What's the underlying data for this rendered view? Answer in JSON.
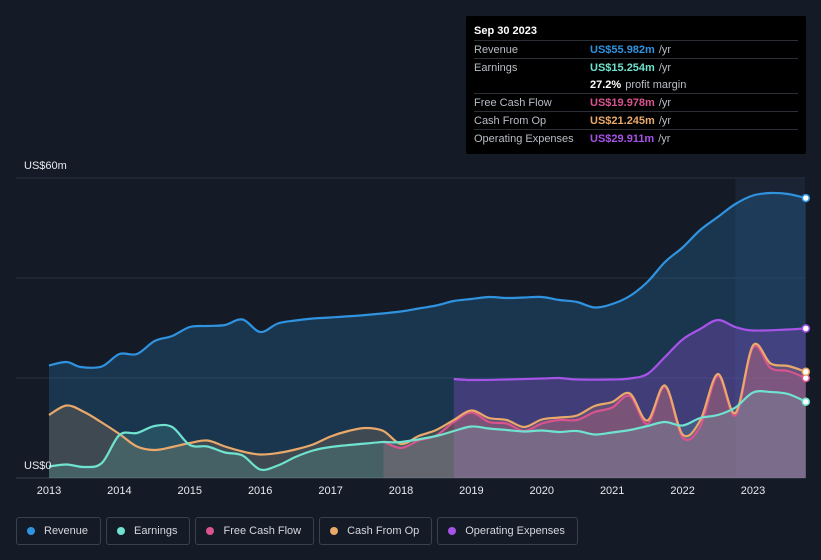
{
  "chart_data": {
    "type": "area",
    "y_axis": {
      "top_label": "US$60m",
      "bottom_label": "US$0",
      "ylim": [
        0,
        60
      ]
    },
    "x_axis": {
      "ticks": [
        "2013",
        "2014",
        "2015",
        "2016",
        "2017",
        "2018",
        "2019",
        "2020",
        "2021",
        "2022",
        "2023"
      ],
      "xlim": [
        2013.0,
        2023.75
      ]
    },
    "forecast_start": 2022.75,
    "series": [
      {
        "key": "revenue",
        "name": "Revenue",
        "color": "#2f93e0",
        "points": [
          [
            2013.0,
            22.5
          ],
          [
            2013.25,
            23.2
          ],
          [
            2013.45,
            22.2
          ],
          [
            2013.75,
            22.3
          ],
          [
            2014.0,
            24.8
          ],
          [
            2014.25,
            24.8
          ],
          [
            2014.5,
            27.4
          ],
          [
            2014.75,
            28.4
          ],
          [
            2015.0,
            30.2
          ],
          [
            2015.25,
            30.4
          ],
          [
            2015.5,
            30.6
          ],
          [
            2015.75,
            31.7
          ],
          [
            2016.0,
            29.2
          ],
          [
            2016.25,
            30.9
          ],
          [
            2016.5,
            31.5
          ],
          [
            2016.75,
            31.9
          ],
          [
            2017.0,
            32.1
          ],
          [
            2017.5,
            32.6
          ],
          [
            2018.0,
            33.3
          ],
          [
            2018.25,
            33.9
          ],
          [
            2018.5,
            34.5
          ],
          [
            2018.75,
            35.4
          ],
          [
            2019.0,
            35.8
          ],
          [
            2019.25,
            36.2
          ],
          [
            2019.5,
            36.0
          ],
          [
            2019.75,
            36.1
          ],
          [
            2020.0,
            36.2
          ],
          [
            2020.25,
            35.6
          ],
          [
            2020.5,
            35.2
          ],
          [
            2020.75,
            34.1
          ],
          [
            2021.0,
            34.8
          ],
          [
            2021.25,
            36.4
          ],
          [
            2021.5,
            39.2
          ],
          [
            2021.75,
            43.2
          ],
          [
            2022.0,
            46.1
          ],
          [
            2022.25,
            49.6
          ],
          [
            2022.5,
            52.2
          ],
          [
            2022.75,
            54.8
          ],
          [
            2023.0,
            56.5
          ],
          [
            2023.25,
            57.0
          ],
          [
            2023.5,
            56.8
          ],
          [
            2023.75,
            55.98
          ]
        ]
      },
      {
        "key": "operating_expenses",
        "name": "Operating Expenses",
        "color": "#a654e8",
        "points": [
          [
            2018.75,
            19.8
          ],
          [
            2019.0,
            19.6
          ],
          [
            2019.5,
            19.7
          ],
          [
            2020.0,
            19.9
          ],
          [
            2020.25,
            20.0
          ],
          [
            2020.5,
            19.7
          ],
          [
            2021.0,
            19.7
          ],
          [
            2021.25,
            19.9
          ],
          [
            2021.5,
            20.8
          ],
          [
            2021.75,
            24.2
          ],
          [
            2022.0,
            27.7
          ],
          [
            2022.25,
            29.8
          ],
          [
            2022.5,
            31.6
          ],
          [
            2022.75,
            30.2
          ],
          [
            2023.0,
            29.5
          ],
          [
            2023.5,
            29.7
          ],
          [
            2023.75,
            29.91
          ]
        ]
      },
      {
        "key": "free_cash_flow",
        "name": "Free Cash Flow",
        "color": "#d9548f",
        "points": [
          [
            2017.75,
            7.3
          ],
          [
            2018.0,
            6.0
          ],
          [
            2018.25,
            7.5
          ],
          [
            2018.5,
            8.5
          ],
          [
            2018.75,
            11.2
          ],
          [
            2019.0,
            13.1
          ],
          [
            2019.25,
            11.2
          ],
          [
            2019.5,
            10.9
          ],
          [
            2019.75,
            9.4
          ],
          [
            2020.0,
            10.9
          ],
          [
            2020.25,
            11.6
          ],
          [
            2020.5,
            11.6
          ],
          [
            2020.75,
            13.2
          ],
          [
            2021.0,
            14.1
          ],
          [
            2021.25,
            16.4
          ],
          [
            2021.5,
            10.8
          ],
          [
            2021.75,
            18.2
          ],
          [
            2022.0,
            8.1
          ],
          [
            2022.25,
            10.3
          ],
          [
            2022.5,
            20.4
          ],
          [
            2022.75,
            12.5
          ],
          [
            2023.0,
            26.1
          ],
          [
            2023.25,
            22.0
          ],
          [
            2023.5,
            21.4
          ],
          [
            2023.75,
            19.98
          ]
        ]
      },
      {
        "key": "cash_from_op",
        "name": "Cash From Op",
        "color": "#e9a96a",
        "points": [
          [
            2013.0,
            12.6
          ],
          [
            2013.25,
            14.5
          ],
          [
            2013.5,
            13.2
          ],
          [
            2013.75,
            11.1
          ],
          [
            2014.0,
            8.8
          ],
          [
            2014.25,
            6.3
          ],
          [
            2014.5,
            5.6
          ],
          [
            2014.75,
            6.2
          ],
          [
            2015.0,
            7.0
          ],
          [
            2015.25,
            7.5
          ],
          [
            2015.5,
            6.3
          ],
          [
            2015.75,
            5.3
          ],
          [
            2016.0,
            4.7
          ],
          [
            2016.25,
            5.0
          ],
          [
            2016.5,
            5.7
          ],
          [
            2016.75,
            6.7
          ],
          [
            2017.0,
            8.3
          ],
          [
            2017.25,
            9.4
          ],
          [
            2017.5,
            10.0
          ],
          [
            2017.75,
            9.4
          ],
          [
            2018.0,
            6.8
          ],
          [
            2018.25,
            8.4
          ],
          [
            2018.5,
            9.6
          ],
          [
            2018.75,
            11.6
          ],
          [
            2019.0,
            13.5
          ],
          [
            2019.25,
            12.0
          ],
          [
            2019.5,
            11.6
          ],
          [
            2019.75,
            10.2
          ],
          [
            2020.0,
            11.7
          ],
          [
            2020.25,
            12.1
          ],
          [
            2020.5,
            12.5
          ],
          [
            2020.75,
            14.4
          ],
          [
            2021.0,
            15.2
          ],
          [
            2021.25,
            16.9
          ],
          [
            2021.5,
            11.5
          ],
          [
            2021.75,
            18.5
          ],
          [
            2022.0,
            8.7
          ],
          [
            2022.25,
            11.5
          ],
          [
            2022.5,
            20.8
          ],
          [
            2022.75,
            13.0
          ],
          [
            2023.0,
            26.5
          ],
          [
            2023.25,
            22.9
          ],
          [
            2023.5,
            22.4
          ],
          [
            2023.75,
            21.25
          ]
        ]
      },
      {
        "key": "earnings",
        "name": "Earnings",
        "color": "#6fe3cf",
        "points": [
          [
            2013.0,
            2.3
          ],
          [
            2013.25,
            2.7
          ],
          [
            2013.5,
            2.2
          ],
          [
            2013.75,
            3.0
          ],
          [
            2014.0,
            8.6
          ],
          [
            2014.25,
            9.0
          ],
          [
            2014.5,
            10.4
          ],
          [
            2014.75,
            10.2
          ],
          [
            2015.0,
            6.6
          ],
          [
            2015.25,
            6.3
          ],
          [
            2015.5,
            5.1
          ],
          [
            2015.75,
            4.5
          ],
          [
            2016.0,
            1.7
          ],
          [
            2016.25,
            2.5
          ],
          [
            2016.5,
            4.2
          ],
          [
            2016.75,
            5.5
          ],
          [
            2017.0,
            6.2
          ],
          [
            2017.5,
            6.9
          ],
          [
            2017.75,
            7.2
          ],
          [
            2018.0,
            7.2
          ],
          [
            2018.5,
            8.4
          ],
          [
            2018.75,
            9.4
          ],
          [
            2019.0,
            10.3
          ],
          [
            2019.25,
            9.9
          ],
          [
            2019.5,
            9.6
          ],
          [
            2019.75,
            9.3
          ],
          [
            2020.0,
            9.5
          ],
          [
            2020.25,
            9.2
          ],
          [
            2020.5,
            9.4
          ],
          [
            2020.75,
            8.7
          ],
          [
            2021.0,
            9.1
          ],
          [
            2021.25,
            9.6
          ],
          [
            2021.5,
            10.4
          ],
          [
            2021.75,
            11.2
          ],
          [
            2022.0,
            10.5
          ],
          [
            2022.25,
            12.0
          ],
          [
            2022.5,
            12.6
          ],
          [
            2022.75,
            14.1
          ],
          [
            2023.0,
            17.1
          ],
          [
            2023.25,
            17.2
          ],
          [
            2023.5,
            16.8
          ],
          [
            2023.75,
            15.25
          ]
        ]
      }
    ]
  },
  "tooltip": {
    "date": "Sep 30 2023",
    "rows": [
      {
        "label": "Revenue",
        "value": "US$55.982m",
        "unit": "/yr",
        "color": "#2f93e0"
      },
      {
        "label": "Earnings",
        "value": "US$15.254m",
        "unit": "/yr",
        "color": "#6fe3cf"
      },
      {
        "label": "",
        "value": "27.2%",
        "unit": "profit margin",
        "color": "#ffffff"
      },
      {
        "label": "Free Cash Flow",
        "value": "US$19.978m",
        "unit": "/yr",
        "color": "#d9548f"
      },
      {
        "label": "Cash From Op",
        "value": "US$21.245m",
        "unit": "/yr",
        "color": "#e9a96a"
      },
      {
        "label": "Operating Expenses",
        "value": "US$29.911m",
        "unit": "/yr",
        "color": "#a654e8"
      }
    ]
  },
  "legend": [
    {
      "label": "Revenue",
      "color": "#2f93e0"
    },
    {
      "label": "Earnings",
      "color": "#6fe3cf"
    },
    {
      "label": "Free Cash Flow",
      "color": "#d9548f"
    },
    {
      "label": "Cash From Op",
      "color": "#e9a96a"
    },
    {
      "label": "Operating Expenses",
      "color": "#a654e8"
    }
  ]
}
